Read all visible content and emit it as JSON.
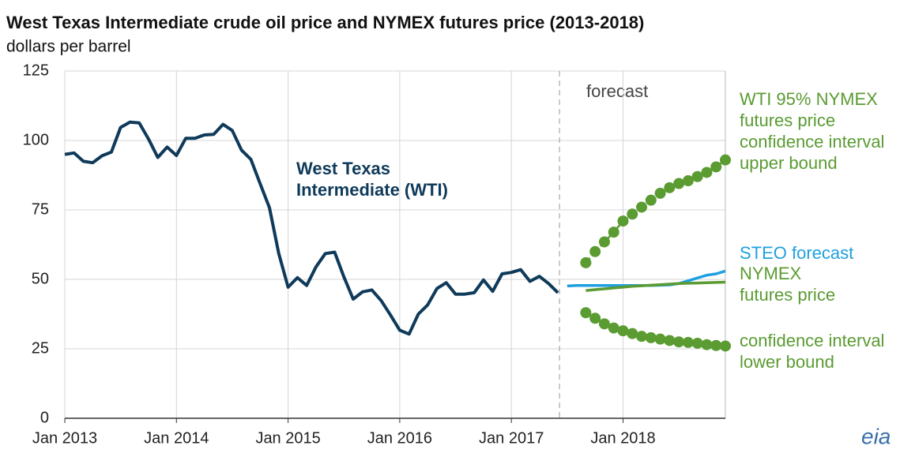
{
  "chart_data": {
    "type": "line",
    "title": "West Texas Intermediate crude oil price and NYMEX futures price (2013-2018)",
    "subtitle": "dollars per barrel",
    "annotation": "forecast",
    "logo": "eia",
    "categories": [
      "Jan 2013",
      null,
      null,
      null,
      null,
      null,
      null,
      null,
      null,
      null,
      null,
      null,
      "Jan 2014",
      null,
      null,
      null,
      null,
      null,
      null,
      null,
      null,
      null,
      null,
      null,
      "Jan 2015",
      null,
      null,
      null,
      null,
      null,
      null,
      null,
      null,
      null,
      null,
      null,
      "Jan 2016",
      null,
      null,
      null,
      null,
      null,
      null,
      null,
      null,
      null,
      null,
      null,
      "Jan 2017",
      null,
      null,
      null,
      null,
      null,
      null,
      null,
      null,
      null,
      null,
      null,
      "Jan 2018",
      null,
      null,
      null,
      null,
      null,
      null,
      null,
      null,
      null,
      null,
      null
    ],
    "ylim": [
      0,
      125
    ],
    "yticks": [
      0,
      25,
      50,
      75,
      100,
      125
    ],
    "grid": true,
    "series": [
      {
        "name": "West Texas Intermediate (WTI)",
        "color": "#0f3a5a",
        "style": "line",
        "values": [
          95,
          95.5,
          92.5,
          92,
          94.5,
          95.8,
          104.7,
          106.6,
          106.3,
          100.5,
          93.9,
          97.6,
          94.6,
          100.8,
          100.8,
          102,
          102.2,
          105.8,
          103.6,
          96.5,
          93.2,
          84.4,
          75.8,
          59.3,
          47.2,
          50.6,
          47.8,
          54.5,
          59.3,
          59.8,
          50.9,
          42.9,
          45.5,
          46.2,
          42.4,
          37.2,
          31.7,
          30.3,
          37.5,
          40.8,
          46.7,
          48.8,
          44.7,
          44.7,
          45.2,
          49.8,
          45.7,
          52,
          52.5,
          53.5,
          49.3,
          51.1,
          48.5,
          45.2,
          null,
          null,
          null,
          null,
          null,
          null,
          null,
          null,
          null,
          null,
          null,
          null,
          null,
          null,
          null,
          null,
          null,
          null
        ]
      },
      {
        "name": "STEO forecast",
        "color": "#1ea0e0",
        "style": "line",
        "values": [
          null,
          null,
          null,
          null,
          null,
          null,
          null,
          null,
          null,
          null,
          null,
          null,
          null,
          null,
          null,
          null,
          null,
          null,
          null,
          null,
          null,
          null,
          null,
          null,
          null,
          null,
          null,
          null,
          null,
          null,
          null,
          null,
          null,
          null,
          null,
          null,
          null,
          null,
          null,
          null,
          null,
          null,
          null,
          null,
          null,
          null,
          null,
          null,
          null,
          null,
          null,
          null,
          null,
          null,
          47.6,
          47.8,
          47.8,
          47.8,
          47.8,
          47.8,
          47.8,
          47.8,
          47.8,
          47.8,
          47.9,
          48,
          48.5,
          49.5,
          50.5,
          51.5,
          52,
          53
        ]
      },
      {
        "name": "NYMEX futures price",
        "color": "#5a9b32",
        "style": "line",
        "values": [
          null,
          null,
          null,
          null,
          null,
          null,
          null,
          null,
          null,
          null,
          null,
          null,
          null,
          null,
          null,
          null,
          null,
          null,
          null,
          null,
          null,
          null,
          null,
          null,
          null,
          null,
          null,
          null,
          null,
          null,
          null,
          null,
          null,
          null,
          null,
          null,
          null,
          null,
          null,
          null,
          null,
          null,
          null,
          null,
          null,
          null,
          null,
          null,
          null,
          null,
          null,
          null,
          null,
          null,
          null,
          null,
          46,
          46.3,
          46.6,
          46.9,
          47.2,
          47.5,
          47.7,
          47.9,
          48.1,
          48.3,
          48.5,
          48.6,
          48.7,
          48.8,
          48.9,
          49
        ]
      },
      {
        "name": "WTI 95% NYMEX futures price confidence interval upper bound",
        "color": "#5a9b32",
        "style": "dots",
        "values": [
          null,
          null,
          null,
          null,
          null,
          null,
          null,
          null,
          null,
          null,
          null,
          null,
          null,
          null,
          null,
          null,
          null,
          null,
          null,
          null,
          null,
          null,
          null,
          null,
          null,
          null,
          null,
          null,
          null,
          null,
          null,
          null,
          null,
          null,
          null,
          null,
          null,
          null,
          null,
          null,
          null,
          null,
          null,
          null,
          null,
          null,
          null,
          null,
          null,
          null,
          null,
          null,
          null,
          null,
          null,
          null,
          56,
          60,
          63.5,
          67,
          71,
          73.5,
          76,
          78.5,
          81,
          83,
          84.5,
          85.5,
          87,
          88.5,
          90.5,
          93
        ]
      },
      {
        "name": "confidence interval lower bound",
        "color": "#5a9b32",
        "style": "dots",
        "values": [
          null,
          null,
          null,
          null,
          null,
          null,
          null,
          null,
          null,
          null,
          null,
          null,
          null,
          null,
          null,
          null,
          null,
          null,
          null,
          null,
          null,
          null,
          null,
          null,
          null,
          null,
          null,
          null,
          null,
          null,
          null,
          null,
          null,
          null,
          null,
          null,
          null,
          null,
          null,
          null,
          null,
          null,
          null,
          null,
          null,
          null,
          null,
          null,
          null,
          null,
          null,
          null,
          null,
          null,
          null,
          null,
          38,
          36,
          34,
          32.5,
          31.5,
          30.5,
          29.5,
          29,
          28.5,
          28,
          27.5,
          27.3,
          27,
          26.5,
          26.2,
          26
        ]
      }
    ]
  }
}
